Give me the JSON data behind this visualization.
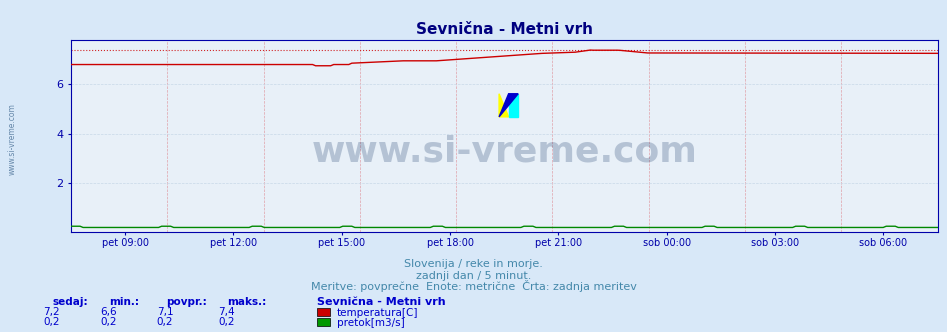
{
  "title": "Sevnična - Metni vrh",
  "bg_color": "#d8e8f8",
  "plot_bg_color": "#e8f0f8",
  "grid_color": "#c8d8e8",
  "grid_vcolor": "#e0a0a8",
  "title_color": "#000080",
  "axis_color": "#0000aa",
  "tick_color": "#0000aa",
  "ylim": [
    0,
    7.8
  ],
  "yticks": [
    2,
    4,
    6
  ],
  "n_points": 288,
  "temp_max_line": 7.4,
  "flow_value": 0.2,
  "temp_color": "#cc0000",
  "flow_color": "#008800",
  "x_tick_labels": [
    "pet 09:00",
    "pet 12:00",
    "pet 15:00",
    "pet 18:00",
    "pet 21:00",
    "sob 00:00",
    "sob 03:00",
    "sob 06:00"
  ],
  "subtitle1": "Slovenija / reke in morje.",
  "subtitle2": "zadnji dan / 5 minut.",
  "subtitle3": "Meritve: povprečne  Enote: metrične  Črta: zadnja meritev",
  "subtitle_color": "#4488aa",
  "footer_color": "#0000cc",
  "legend_title": "Sevnična - Metni vrh",
  "legend_items": [
    "temperatura[C]",
    "pretok[m3/s]"
  ],
  "legend_colors": [
    "#cc0000",
    "#009900"
  ],
  "stats_headers": [
    "sedaj:",
    "min.:",
    "povpr.:",
    "maks.:"
  ],
  "stats_temp": [
    "7,2",
    "6,6",
    "7,1",
    "7,4"
  ],
  "stats_flow": [
    "0,2",
    "0,2",
    "0,2",
    "0,2"
  ],
  "watermark": "www.si-vreme.com",
  "watermark_color": "#1a3a6a",
  "left_label": "www.si-vreme.com",
  "left_label_color": "#6688aa"
}
